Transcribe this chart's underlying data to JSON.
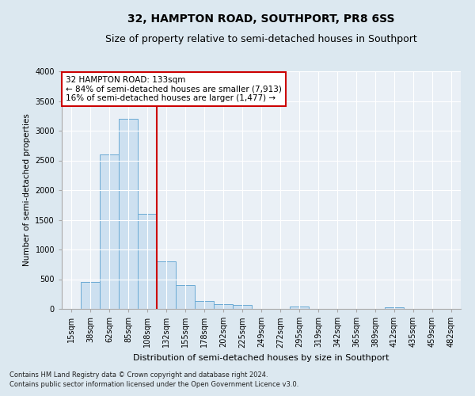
{
  "title": "32, HAMPTON ROAD, SOUTHPORT, PR8 6SS",
  "subtitle": "Size of property relative to semi-detached houses in Southport",
  "xlabel": "Distribution of semi-detached houses by size in Southport",
  "ylabel": "Number of semi-detached properties",
  "footer1": "Contains HM Land Registry data © Crown copyright and database right 2024.",
  "footer2": "Contains public sector information licensed under the Open Government Licence v3.0.",
  "categories": [
    "15sqm",
    "38sqm",
    "62sqm",
    "85sqm",
    "108sqm",
    "132sqm",
    "155sqm",
    "178sqm",
    "202sqm",
    "225sqm",
    "249sqm",
    "272sqm",
    "295sqm",
    "319sqm",
    "342sqm",
    "365sqm",
    "389sqm",
    "412sqm",
    "435sqm",
    "459sqm",
    "482sqm"
  ],
  "values": [
    5,
    450,
    2600,
    3200,
    1600,
    800,
    400,
    130,
    80,
    70,
    5,
    5,
    40,
    5,
    5,
    5,
    5,
    30,
    5,
    5,
    5
  ],
  "bar_color": "#cde0f0",
  "bar_edge_color": "#6aaad4",
  "highlight_line_color": "#cc0000",
  "highlight_line_index": 5,
  "annotation_line1": "32 HAMPTON ROAD: 133sqm",
  "annotation_line2": "← 84% of semi-detached houses are smaller (7,913)",
  "annotation_line3": "16% of semi-detached houses are larger (1,477) →",
  "annotation_box_color": "#cc0000",
  "ylim": [
    0,
    4000
  ],
  "yticks": [
    0,
    500,
    1000,
    1500,
    2000,
    2500,
    3000,
    3500,
    4000
  ],
  "bg_color": "#dce8f0",
  "plot_bg_color": "#eaf0f6",
  "title_fontsize": 10,
  "subtitle_fontsize": 9,
  "xlabel_fontsize": 8,
  "ylabel_fontsize": 7.5,
  "tick_fontsize": 7,
  "annotation_fontsize": 7.5,
  "footer_fontsize": 6
}
